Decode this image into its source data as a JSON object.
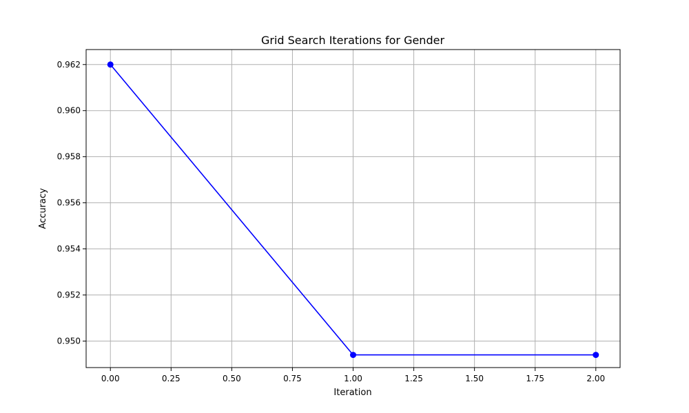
{
  "chart_data": {
    "type": "line",
    "title": "Grid Search Iterations for Gender",
    "xlabel": "Iteration",
    "ylabel": "Accuracy",
    "xlim": [
      -0.1,
      2.1
    ],
    "ylim": [
      0.94885,
      0.96265
    ],
    "xticks": [
      0.0,
      0.25,
      0.5,
      0.75,
      1.0,
      1.25,
      1.5,
      1.75,
      2.0
    ],
    "xtick_labels": [
      "0.00",
      "0.25",
      "0.50",
      "0.75",
      "1.00",
      "1.25",
      "1.50",
      "1.75",
      "2.00"
    ],
    "yticks": [
      0.95,
      0.952,
      0.954,
      0.956,
      0.958,
      0.96,
      0.962
    ],
    "ytick_labels": [
      "0.950",
      "0.952",
      "0.954",
      "0.956",
      "0.958",
      "0.960",
      "0.962"
    ],
    "grid": true,
    "series": [
      {
        "x": [
          0,
          1,
          2
        ],
        "values": [
          0.962,
          0.9494,
          0.9494
        ],
        "color": "#0000ff",
        "marker": "circle"
      }
    ]
  }
}
